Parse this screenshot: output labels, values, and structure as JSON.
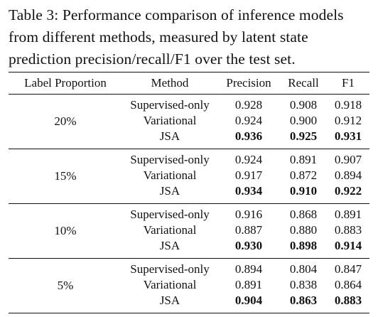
{
  "caption": "Table 3: Performance comparison of inference models from different methods, measured by latent state prediction precision/recall/F1 over the test set.",
  "table": {
    "headers": [
      "Label Proportion",
      "Method",
      "Precision",
      "Recall",
      "F1"
    ],
    "groups": [
      {
        "proportion": "20%",
        "rows": [
          {
            "method": "Supervised-only",
            "precision": "0.928",
            "recall": "0.908",
            "f1": "0.918",
            "bold": false
          },
          {
            "method": "Variational",
            "precision": "0.924",
            "recall": "0.900",
            "f1": "0.912",
            "bold": false
          },
          {
            "method": "JSA",
            "precision": "0.936",
            "recall": "0.925",
            "f1": "0.931",
            "bold": true
          }
        ]
      },
      {
        "proportion": "15%",
        "rows": [
          {
            "method": "Supervised-only",
            "precision": "0.924",
            "recall": "0.891",
            "f1": "0.907",
            "bold": false
          },
          {
            "method": "Variational",
            "precision": "0.917",
            "recall": "0.872",
            "f1": "0.894",
            "bold": false
          },
          {
            "method": "JSA",
            "precision": "0.934",
            "recall": "0.910",
            "f1": "0.922",
            "bold": true
          }
        ]
      },
      {
        "proportion": "10%",
        "rows": [
          {
            "method": "Supervised-only",
            "precision": "0.916",
            "recall": "0.868",
            "f1": "0.891",
            "bold": false
          },
          {
            "method": "Variational",
            "precision": "0.887",
            "recall": "0.880",
            "f1": "0.883",
            "bold": false
          },
          {
            "method": "JSA",
            "precision": "0.930",
            "recall": "0.898",
            "f1": "0.914",
            "bold": true
          }
        ]
      },
      {
        "proportion": "5%",
        "rows": [
          {
            "method": "Supervised-only",
            "precision": "0.894",
            "recall": "0.804",
            "f1": "0.847",
            "bold": false
          },
          {
            "method": "Variational",
            "precision": "0.891",
            "recall": "0.838",
            "f1": "0.864",
            "bold": false
          },
          {
            "method": "JSA",
            "precision": "0.904",
            "recall": "0.863",
            "f1": "0.883",
            "bold": true
          }
        ]
      }
    ]
  }
}
